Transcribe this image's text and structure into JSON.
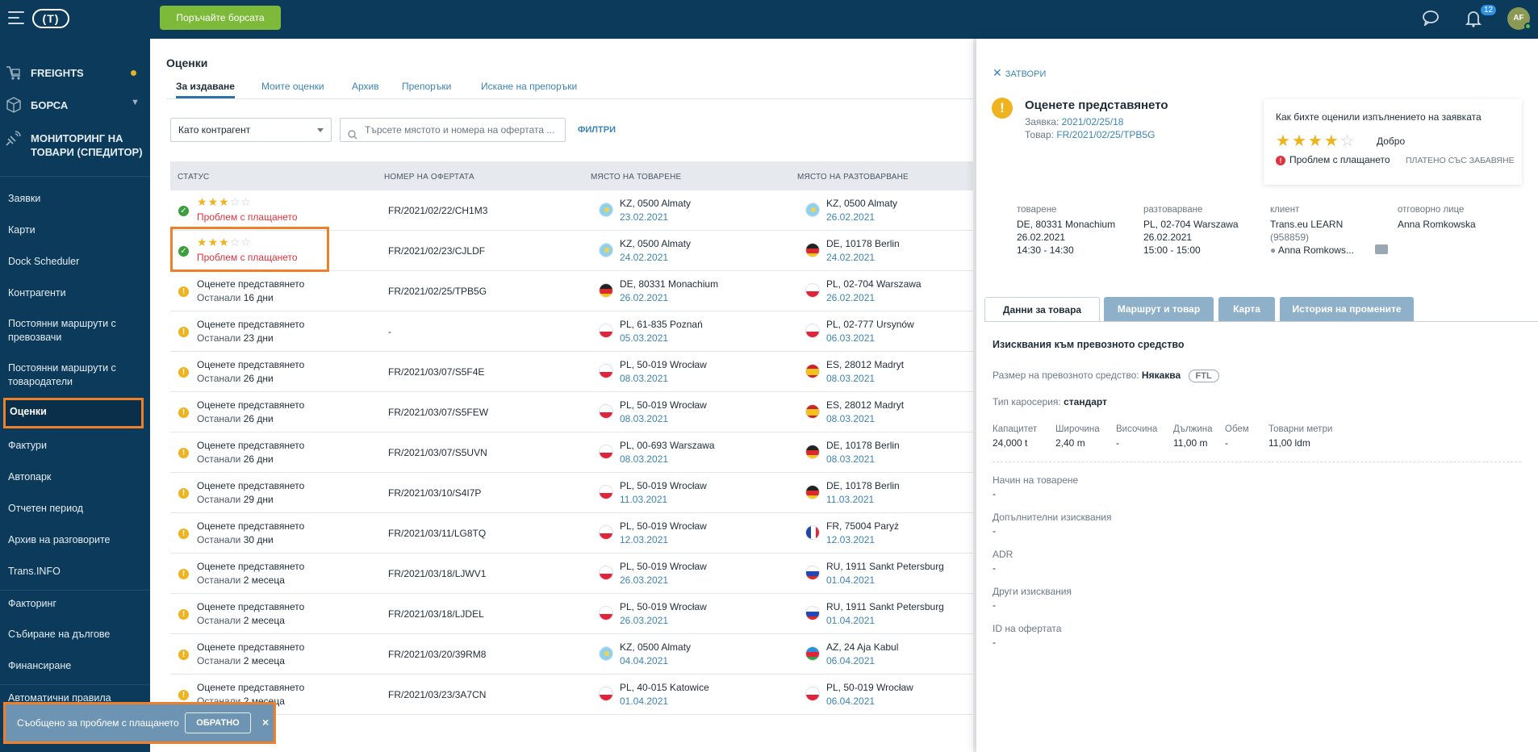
{
  "top": {
    "exchange_button": "Поръчайте борсата",
    "notifications_count": "12",
    "avatar_initials": "AF"
  },
  "sidebar": {
    "freights": "FREIGHTS",
    "exchange": "БОРСА",
    "monitoring": "МОНИТОРИНГ НА ТОВАРИ (СПЕДИТОР)",
    "items": [
      "Заявки",
      "Карти",
      "Dock Scheduler",
      "Контрагенти",
      "Постоянни маршрути с превозвачи",
      "Постоянни маршрути с товародатели",
      "Оценки",
      "Фактури",
      "Автопарк",
      "Отчетен период",
      "Архив на разговорите",
      "Trans.INFO",
      "Факторинг",
      "Събиране на дългове",
      "Финансиране",
      "Автоматични правила"
    ]
  },
  "main": {
    "title": "Оценки",
    "tabs": [
      "За издаване",
      "Моите оценки",
      "Архив",
      "Препоръки",
      "Искане на препоръки"
    ],
    "role_select": "Като контрагент",
    "search_placeholder": "Търсете мястото и номера на офертата ...",
    "filters": "ФИЛТРИ",
    "columns": [
      "СТАТУС",
      "НОМЕР НА ОФЕРТАТА",
      "МЯСТО НА ТОВАРЕНЕ",
      "МЯСТО НА РАЗТОВАРВАНЕ"
    ],
    "rows": [
      {
        "kind": "rated",
        "rating": 3,
        "status2": "Проблем с плащането",
        "number": "FR/2021/02/22/CH1M3",
        "load_place": "KZ, 0500 Almaty",
        "load_date": "23.02.2021",
        "load_flag": "kz",
        "unload_place": "KZ, 0500 Almaty",
        "unload_date": "26.02.2021",
        "unload_flag": "kz"
      },
      {
        "kind": "rated",
        "rating": 3,
        "status2": "Проблем с плащането",
        "number": "FR/2021/02/23/CJLDF",
        "load_place": "KZ, 0500 Almaty",
        "load_date": "24.02.2021",
        "load_flag": "kz",
        "unload_place": "DE, 10178 Berlin",
        "unload_date": "24.02.2021",
        "unload_flag": "de"
      },
      {
        "kind": "pending",
        "status1": "Оценете представянето",
        "status2": "Останали",
        "remaining": "16 дни",
        "number": "FR/2021/02/25/TPB5G",
        "load_place": "DE, 80331 Monachium",
        "load_date": "26.02.2021",
        "load_flag": "de",
        "unload_place": "PL, 02-704 Warszawa",
        "unload_date": "26.02.2021",
        "unload_flag": "pl"
      },
      {
        "kind": "pending",
        "status1": "Оценете представянето",
        "status2": "Останали",
        "remaining": "23 дни",
        "number": "-",
        "load_place": "PL, 61-835 Poznań",
        "load_date": "05.03.2021",
        "load_flag": "pl",
        "unload_place": "PL, 02-777 Ursynów",
        "unload_date": "06.03.2021",
        "unload_flag": "pl"
      },
      {
        "kind": "pending",
        "status1": "Оценете представянето",
        "status2": "Останали",
        "remaining": "26 дни",
        "number": "FR/2021/03/07/S5F4E",
        "load_place": "PL, 50-019 Wrocław",
        "load_date": "08.03.2021",
        "load_flag": "pl",
        "unload_place": "ES, 28012 Madryt",
        "unload_date": "08.03.2021",
        "unload_flag": "es"
      },
      {
        "kind": "pending",
        "status1": "Оценете представянето",
        "status2": "Останали",
        "remaining": "26 дни",
        "number": "FR/2021/03/07/S5FEW",
        "load_place": "PL, 50-019 Wrocław",
        "load_date": "08.03.2021",
        "load_flag": "pl",
        "unload_place": "ES, 28012 Madryt",
        "unload_date": "08.03.2021",
        "unload_flag": "es"
      },
      {
        "kind": "pending",
        "status1": "Оценете представянето",
        "status2": "Останали",
        "remaining": "26 дни",
        "number": "FR/2021/03/07/S5UVN",
        "load_place": "PL, 00-693 Warszawa",
        "load_date": "08.03.2021",
        "load_flag": "pl",
        "unload_place": "DE, 10178 Berlin",
        "unload_date": "08.03.2021",
        "unload_flag": "de"
      },
      {
        "kind": "pending",
        "status1": "Оценете представянето",
        "status2": "Останали",
        "remaining": "29 дни",
        "number": "FR/2021/03/10/S4I7P",
        "load_place": "PL, 50-019 Wrocław",
        "load_date": "11.03.2021",
        "load_flag": "pl",
        "unload_place": "DE, 10178 Berlin",
        "unload_date": "11.03.2021",
        "unload_flag": "de"
      },
      {
        "kind": "pending",
        "status1": "Оценете представянето",
        "status2": "Останали",
        "remaining": "30 дни",
        "number": "FR/2021/03/11/LG8TQ",
        "load_place": "PL, 50-019 Wrocław",
        "load_date": "12.03.2021",
        "load_flag": "pl",
        "unload_place": "FR, 75004 Paryż",
        "unload_date": "12.03.2021",
        "unload_flag": "fr"
      },
      {
        "kind": "pending",
        "status1": "Оценете представянето",
        "status2": "Останали",
        "remaining": "2 месеца",
        "number": "FR/2021/03/18/LJWV1",
        "load_place": "PL, 50-019 Wrocław",
        "load_date": "26.03.2021",
        "load_flag": "pl",
        "unload_place": "RU, 1911 Sankt Petersburg",
        "unload_date": "01.04.2021",
        "unload_flag": "ru"
      },
      {
        "kind": "pending",
        "status1": "Оценете представянето",
        "status2": "Останали",
        "remaining": "2 месеца",
        "number": "FR/2021/03/18/LJDEL",
        "load_place": "PL, 50-019 Wrocław",
        "load_date": "26.03.2021",
        "load_flag": "pl",
        "unload_place": "RU, 1911 Sankt Petersburg",
        "unload_date": "01.04.2021",
        "unload_flag": "ru"
      },
      {
        "kind": "pending",
        "status1": "Оценете представянето",
        "status2": "Останали",
        "remaining": "2 месеца",
        "number": "FR/2021/03/20/39RM8",
        "load_place": "KZ, 0500 Almaty",
        "load_date": "04.04.2021",
        "load_flag": "kz",
        "unload_place": "AZ, 24 Aja Kabul",
        "unload_date": "06.04.2021",
        "unload_flag": "az"
      },
      {
        "kind": "pending",
        "status1": "Оценете представянето",
        "status2": "Останали",
        "remaining": "2 месеца",
        "number": "FR/2021/03/23/3A7CN",
        "load_place": "PL, 40-015 Katowice",
        "load_date": "01.04.2021",
        "load_flag": "pl",
        "unload_place": "PL, 50-019 Wrocław",
        "unload_date": "06.04.2021",
        "unload_flag": "pl"
      }
    ]
  },
  "panel": {
    "close": "ЗАТВОРИ",
    "title": "Оценете представянето",
    "order_label": "Заявка:",
    "order_value": "2021/02/25/18",
    "cargo_label": "Товар:",
    "cargo_value": "FR/2021/02/25/TPB5G",
    "rating_question": "Как бихте оценили изпълнението на заявката",
    "rating_value": 4,
    "rating_word": "Добро",
    "problem": "Проблем с плащането",
    "late": "ПЛАТЕНО СЪС ЗАБАВЯНЕ",
    "summary": {
      "load_h": "товарене",
      "load_1": "DE, 80331 Monachium",
      "load_2": "26.02.2021",
      "load_3": "14:30 - 14:30",
      "unload_h": "разтоварване",
      "unload_1": "PL, 02-704 Warszawa",
      "unload_2": "26.02.2021",
      "unload_3": "15:00 - 15:00",
      "client_h": "клиент",
      "client_1": "Trans.eu LEARN",
      "client_2": "(958859)",
      "client_3": "Anna Romkows...",
      "resp_h": "отговорно лице",
      "resp_1": "Anna Romkowska"
    },
    "tabs": [
      "Данни за товара",
      "Маршрут и товар",
      "Карта",
      "История на промените"
    ],
    "section": "Изисквания към превозното средство",
    "size_label": "Размер на превозното средство:",
    "size_value": "Някаква",
    "size_badge": "FTL",
    "body_label": "Тип каросерия:",
    "body_value": "стандарт",
    "dims": [
      {
        "h": "Капацитет",
        "v": "24,000 t"
      },
      {
        "h": "Широчина",
        "v": "2,40 m"
      },
      {
        "h": "Височина",
        "v": "-"
      },
      {
        "h": "Дължина",
        "v": "11,00 m"
      },
      {
        "h": "Обем",
        "v": "-"
      },
      {
        "h": "Товарни метри",
        "v": "11,00 ldm"
      }
    ],
    "blocks": [
      {
        "h": "Начин на товарене",
        "v": "-"
      },
      {
        "h": "Допълнителни изисквания",
        "v": "-"
      },
      {
        "h": "ADR",
        "v": "-"
      },
      {
        "h": "Други изисквания",
        "v": "-"
      },
      {
        "h": "ID на офертата",
        "v": "-"
      }
    ]
  },
  "toast": {
    "text": "Съобщено за проблем с плащането",
    "undo": "ОБРАТНО"
  }
}
